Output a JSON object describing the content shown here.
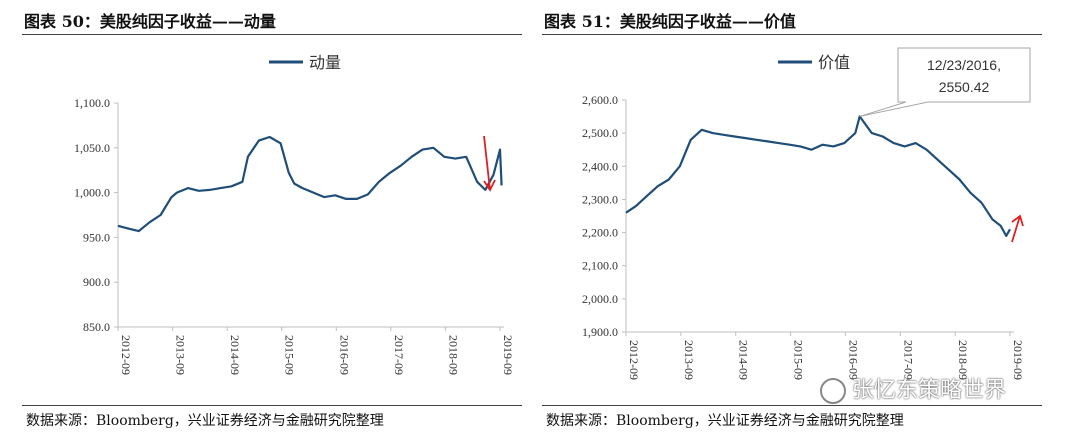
{
  "figures": [
    {
      "title": "图表 50：美股纯因子收益——动量",
      "source": "数据来源：Bloomberg，兴业证券经济与金融研究院整理"
    },
    {
      "title": "图表 51：美股纯因子收益——价值",
      "source": "数据来源：Bloomberg，兴业证券经济与金融研究院整理"
    }
  ],
  "chart_data": [
    {
      "type": "line",
      "legend": "top-center",
      "ylim": [
        850,
        1100
      ],
      "yticks": [
        "1,100.0",
        "1,050.0",
        "1,000.0",
        "950.0",
        "900.0",
        "850.0"
      ],
      "ytick_values": [
        1100,
        1050,
        1000,
        950,
        900,
        850
      ],
      "xticks": [
        "2012-09",
        "2013-09",
        "2014-09",
        "2015-09",
        "2016-09",
        "2017-09",
        "2018-09",
        "2019-09"
      ],
      "grid": false,
      "series": [
        {
          "name": "动量",
          "color": "#1f4e79",
          "x": [
            2012.72,
            2012.9,
            2013.1,
            2013.3,
            2013.5,
            2013.7,
            2013.8,
            2014.0,
            2014.2,
            2014.4,
            2014.6,
            2014.8,
            2015.0,
            2015.1,
            2015.3,
            2015.5,
            2015.7,
            2015.85,
            2015.95,
            2016.1,
            2016.3,
            2016.5,
            2016.7,
            2016.9,
            2017.1,
            2017.3,
            2017.5,
            2017.7,
            2017.9,
            2018.1,
            2018.3,
            2018.5,
            2018.7,
            2018.9,
            2019.1,
            2019.3,
            2019.45,
            2019.6,
            2019.72,
            2019.75
          ],
          "y": [
            963,
            960,
            957,
            967,
            975,
            995,
            1000,
            1005,
            1002,
            1003,
            1005,
            1007,
            1012,
            1040,
            1058,
            1062,
            1055,
            1022,
            1010,
            1005,
            1000,
            995,
            997,
            993,
            993,
            998,
            1012,
            1022,
            1030,
            1040,
            1048,
            1050,
            1040,
            1038,
            1040,
            1012,
            1003,
            1020,
            1048,
            1008
          ]
        }
      ],
      "annotation_arrow": {
        "direction": "down",
        "color": "#e02020"
      }
    },
    {
      "type": "line",
      "legend": "top-center",
      "ylim": [
        1900,
        2600
      ],
      "yticks": [
        "2,600.0",
        "2,500.0",
        "2,400.0",
        "2,300.0",
        "2,200.0",
        "2,100.0",
        "2,000.0",
        "1,900.0"
      ],
      "ytick_values": [
        2600,
        2500,
        2400,
        2300,
        2200,
        2100,
        2000,
        1900
      ],
      "xticks": [
        "2012-09",
        "2013-09",
        "2014-09",
        "2015-09",
        "2016-09",
        "2017-09",
        "2018-09",
        "2019-09"
      ],
      "grid": false,
      "series": [
        {
          "name": "价值",
          "color": "#1f4e79",
          "x": [
            2012.72,
            2012.9,
            2013.1,
            2013.3,
            2013.5,
            2013.7,
            2013.9,
            2014.1,
            2014.3,
            2014.5,
            2014.7,
            2014.9,
            2015.1,
            2015.3,
            2015.5,
            2015.7,
            2015.9,
            2016.1,
            2016.3,
            2016.5,
            2016.7,
            2016.9,
            2016.98,
            2017.2,
            2017.4,
            2017.6,
            2017.8,
            2018.0,
            2018.2,
            2018.4,
            2018.6,
            2018.8,
            2019.0,
            2019.2,
            2019.4,
            2019.55,
            2019.65,
            2019.72
          ],
          "y": [
            2260,
            2280,
            2310,
            2340,
            2360,
            2400,
            2480,
            2510,
            2500,
            2495,
            2490,
            2485,
            2480,
            2475,
            2470,
            2465,
            2460,
            2450,
            2465,
            2460,
            2470,
            2500,
            2550.42,
            2500,
            2490,
            2470,
            2460,
            2470,
            2450,
            2420,
            2390,
            2360,
            2320,
            2290,
            2240,
            2220,
            2190,
            2210
          ]
        }
      ],
      "annotation": {
        "label_line1": "12/23/2016,",
        "label_line2": "2550.42",
        "x": 2016.98,
        "y": 2550.42
      },
      "annotation_arrow": {
        "direction": "up",
        "color": "#e02020"
      }
    }
  ],
  "watermark": {
    "text": "张忆东策略世界"
  }
}
